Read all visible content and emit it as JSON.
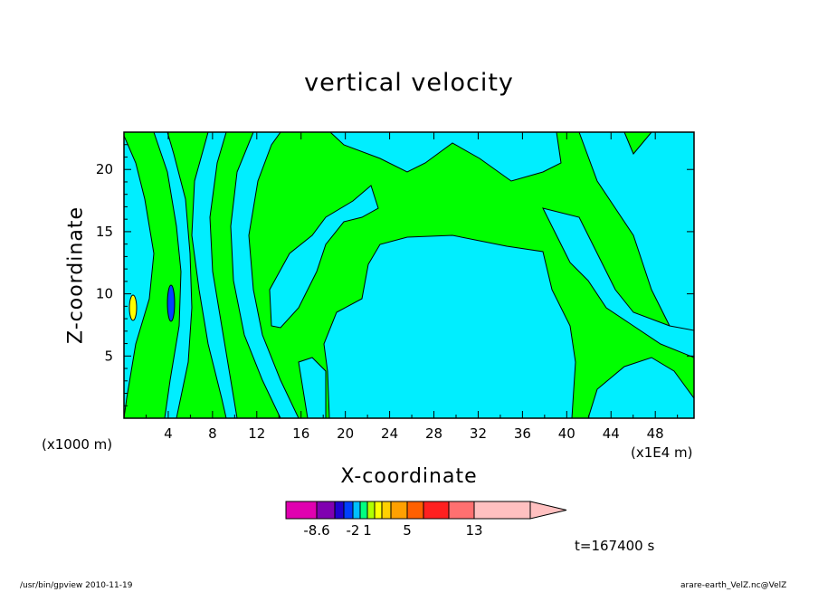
{
  "chart_data": {
    "type": "heatmap",
    "title": "vertical velocity",
    "xlabel": "X-coordinate",
    "ylabel": "Z-coordinate",
    "x_unit": "(x1E4 m)",
    "y_unit": "(x1000 m)",
    "xlim": [
      0,
      51.5
    ],
    "ylim": [
      0,
      23
    ],
    "x_ticks": [
      4,
      8,
      12,
      16,
      20,
      24,
      28,
      32,
      36,
      40,
      44,
      48
    ],
    "y_ticks": [
      5,
      10,
      15,
      20
    ],
    "colorbar": {
      "levels_labeled": [
        "-8.6",
        "-2",
        "1",
        "5",
        "13"
      ],
      "colors": [
        "#e000b0",
        "#8000b0",
        "#2000d0",
        "#0040ff",
        "#00c0ff",
        "#00ff80",
        "#b0ff00",
        "#ffff00",
        "#ffd000",
        "#ffa000",
        "#ff6000",
        "#ff2020",
        "#ff7070",
        "#ffc0c0"
      ]
    },
    "fields": {
      "background_color": "#00ff00",
      "negative_region_color": "#00eeff",
      "central_region": {
        "x_range": [
          18.5,
          40
        ],
        "z_top": 14.5
      }
    },
    "annotation": "t=167400 s"
  },
  "footer": {
    "left": "/usr/bin/gpview   2010-11-19",
    "right": "arare-earth_VelZ.nc@VelZ"
  }
}
